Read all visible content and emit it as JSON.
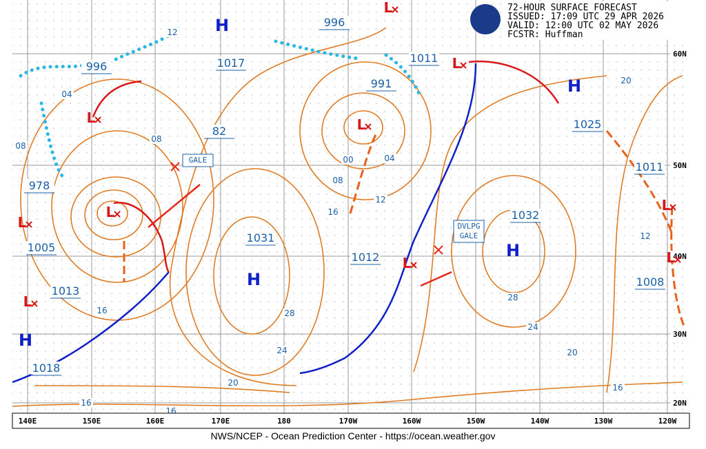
{
  "header": {
    "title": "72-HOUR SURFACE FORECAST",
    "issued": "ISSUED: 17:09 UTC 29 APR 2026",
    "valid": "VALID:  12:00 UTC 02 MAY 2026",
    "forecaster": "FCSTR:  Huffman"
  },
  "longitude_labels": [
    "140E",
    "150E",
    "160E",
    "170E",
    "180",
    "170W",
    "160W",
    "150W",
    "140W",
    "130W",
    "120W"
  ],
  "latitude_labels": [
    "60N",
    "50N",
    "40N",
    "30N",
    "20N"
  ],
  "pressure_labels": [
    "996",
    "996",
    "1017",
    "1011",
    "991",
    "1025",
    "82",
    "1011",
    "978",
    "1032",
    "1031",
    "1005",
    "1012",
    "1008",
    "1013",
    "1018"
  ],
  "isobar_labels": [
    "12",
    "20",
    "04",
    "08",
    "08",
    "00",
    "04",
    "08",
    "12",
    "16",
    "12",
    "28",
    "28",
    "24",
    "24",
    "20",
    "20",
    "16",
    "16",
    "16",
    "16"
  ],
  "highs": [
    "H",
    "H",
    "H",
    "H",
    "H"
  ],
  "lows": [
    "L",
    "L",
    "L",
    "L",
    "L",
    "L",
    "L",
    "L",
    "L",
    "L"
  ],
  "warnings": [
    {
      "lines": [
        "GALE"
      ]
    },
    {
      "lines": [
        "DVLPG",
        "GALE"
      ]
    }
  ],
  "footer": "NWS/NCEP - Ocean Prediction Center - https://ocean.weather.gov"
}
